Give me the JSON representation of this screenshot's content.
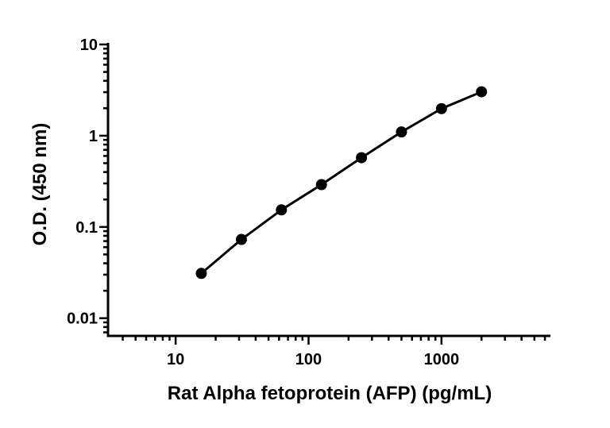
{
  "chart_data": {
    "type": "line",
    "title": "",
    "xlabel": "Rat Alpha fetoprotein (AFP) (pg/mL)",
    "ylabel": "O.D. (450 nm)",
    "xscale": "log",
    "yscale": "log",
    "xlim": [
      3.1,
      6600
    ],
    "ylim": [
      0.0064,
      10
    ],
    "x_ticks": [
      10,
      100,
      1000
    ],
    "x_tick_labels": [
      "10",
      "100",
      "1000"
    ],
    "y_ticks": [
      0.01,
      0.1,
      1,
      10
    ],
    "y_tick_labels": [
      "0.01",
      "0.1",
      "1",
      "10"
    ],
    "grid": false,
    "series": [
      {
        "x": [
          15.6,
          31.25,
          62.5,
          125,
          250,
          500,
          1000,
          2000
        ],
        "y": [
          0.031,
          0.073,
          0.154,
          0.291,
          0.574,
          1.1,
          1.98,
          3.03
        ],
        "color": "#000000",
        "marker": "circle"
      }
    ]
  }
}
